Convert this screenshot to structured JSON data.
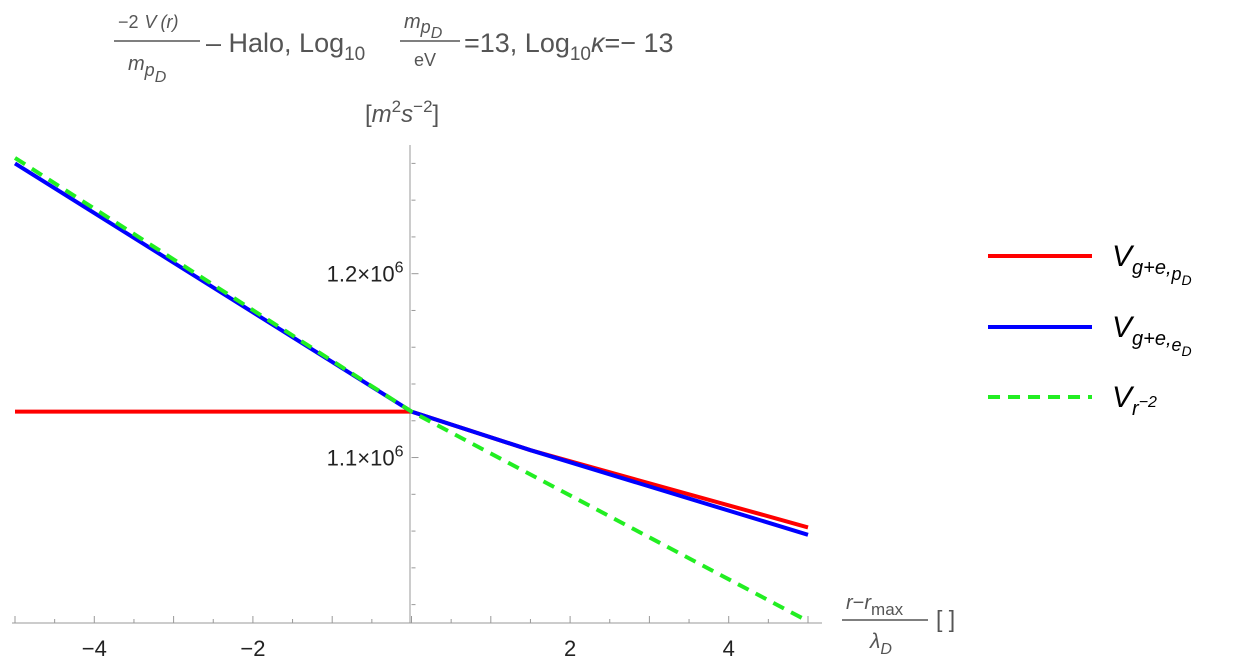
{
  "chart_data": {
    "type": "line",
    "title": {
      "frac_num_a": "−2",
      "frac_num_V": "V",
      "frac_num_r": "(r)",
      "frac_den_m": "m",
      "frac_den_p": "p",
      "frac_den_D": "D",
      "text1": " – Halo, Log",
      "sub1": "10",
      "m2_m": "m",
      "m2_p": "p",
      "m2_D": "D",
      "ev": "eV",
      "eq13": "=13, Log",
      "sub2": "10",
      "kappa": "κ",
      "eqm13": "=− 13"
    },
    "ylabel": {
      "open": "[",
      "m": "m",
      "m_exp": "2",
      "s": "s",
      "s_exp": "−2",
      "close": "]"
    },
    "xlabel": {
      "num_r": "r",
      "minus": "−",
      "num_r2": "r",
      "num_max": "max",
      "den_lambda": "λ",
      "den_D": "D",
      "units": "[ ]"
    },
    "xlim": [
      -5,
      5
    ],
    "ylim": [
      1010000,
      1270000
    ],
    "x_ticks": [
      {
        "value": -4,
        "label": "−4"
      },
      {
        "value": -2,
        "label": "−2"
      },
      {
        "value": 2,
        "label": "2"
      },
      {
        "value": 4,
        "label": "4"
      }
    ],
    "y_ticks": [
      {
        "value": 1200000,
        "mantissa": "1.2",
        "times": "×",
        "base": "10",
        "exp": "6"
      },
      {
        "value": 1100000,
        "mantissa": "1.1",
        "times": "×",
        "base": "10",
        "exp": "6"
      }
    ],
    "series": [
      {
        "id": "red",
        "color": "#ff0000",
        "dashed": false,
        "points": [
          [
            -5,
            1125000
          ],
          [
            0,
            1125000
          ],
          [
            1.5,
            1104000
          ],
          [
            5,
            1062000
          ]
        ],
        "legend": {
          "V": "V",
          "sub": "g+e,",
          "subsub_p": "p",
          "subsubsub": "D"
        }
      },
      {
        "id": "blue",
        "color": "#0000ff",
        "dashed": false,
        "points": [
          [
            -5,
            1260000
          ],
          [
            0,
            1125000
          ],
          [
            1.5,
            1104000
          ],
          [
            5,
            1058000
          ]
        ],
        "legend": {
          "V": "V",
          "sub": "g+e,",
          "subsub_p": "e",
          "subsubsub": "D"
        }
      },
      {
        "id": "green",
        "color": "#22ee22",
        "dashed": true,
        "points": [
          [
            -5,
            1263000
          ],
          [
            0,
            1125000
          ],
          [
            5,
            1011000
          ]
        ],
        "legend": {
          "V": "V",
          "sub": "r",
          "sup": "−2"
        }
      }
    ],
    "legend_position": "right"
  }
}
